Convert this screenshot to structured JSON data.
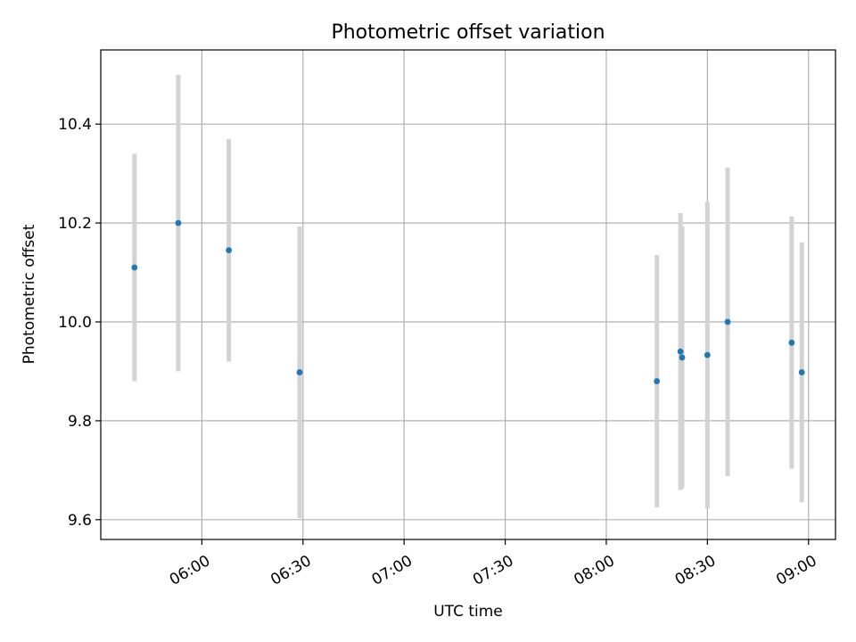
{
  "chart_data": {
    "type": "scatter",
    "title": "Photometric offset variation",
    "xlabel": "UTC time",
    "ylabel": "Photometric offset",
    "x_axis_type": "time",
    "xlim": [
      "05:30",
      "09:08"
    ],
    "ylim": [
      9.56,
      10.55
    ],
    "x_ticks": [
      "06:00",
      "06:30",
      "07:00",
      "07:30",
      "08:00",
      "08:30",
      "09:00"
    ],
    "y_ticks": [
      9.6,
      9.8,
      10.0,
      10.2,
      10.4
    ],
    "grid": true,
    "errorbar_color": "#d3d3d3",
    "point_color": "#1f77b4",
    "points": [
      {
        "t": "05:40",
        "y": 10.11,
        "err": 0.23
      },
      {
        "t": "05:53",
        "y": 10.2,
        "err": 0.3
      },
      {
        "t": "06:08",
        "y": 10.145,
        "err": 0.225
      },
      {
        "t": "06:29",
        "y": 9.898,
        "err": 0.295
      },
      {
        "t": "08:15",
        "y": 9.88,
        "err": 0.255
      },
      {
        "t": "08:22",
        "y": 9.94,
        "err": 0.28
      },
      {
        "t": "08:22.5",
        "y": 9.928,
        "err": 0.265
      },
      {
        "t": "08:30",
        "y": 9.933,
        "err": 0.31
      },
      {
        "t": "08:36",
        "y": 10.0,
        "err": 0.312
      },
      {
        "t": "08:55",
        "y": 9.958,
        "err": 0.255
      },
      {
        "t": "08:58",
        "y": 9.898,
        "err": 0.263
      }
    ]
  }
}
